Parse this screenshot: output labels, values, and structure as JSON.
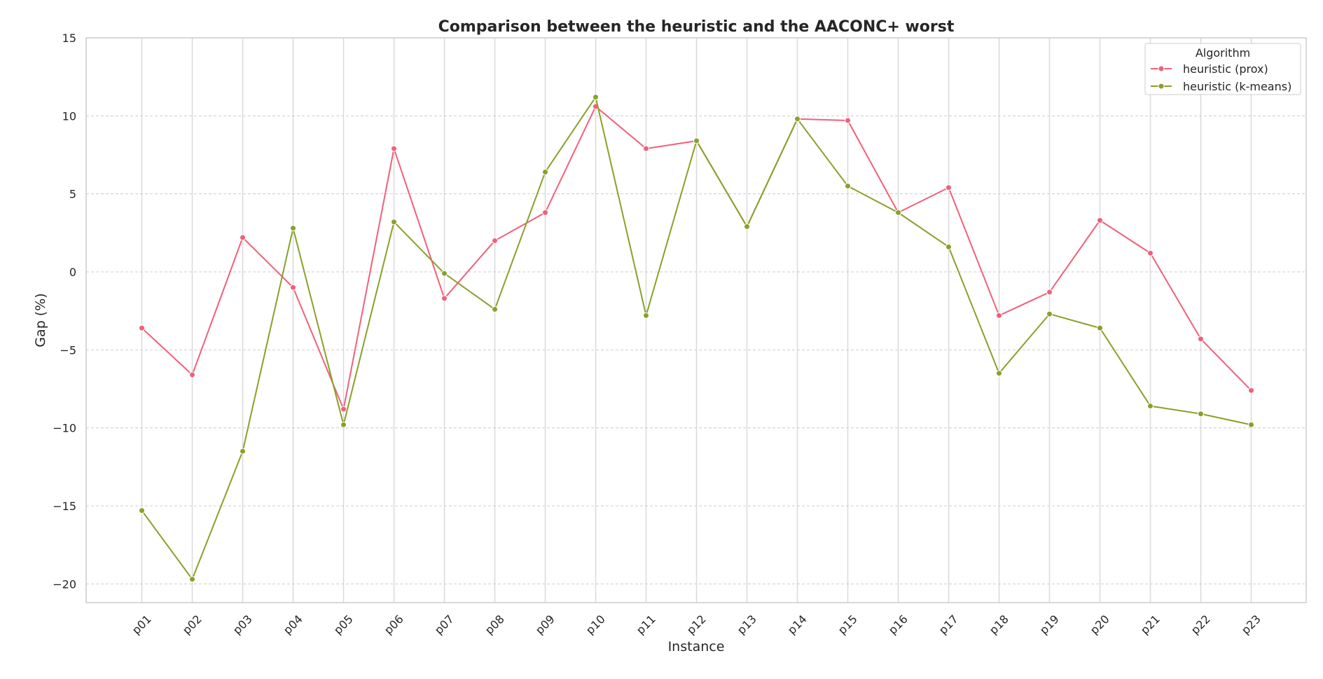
{
  "chart_data": {
    "type": "line",
    "title": "Comparison between the heuristic and the AACONC+ worst",
    "xlabel": "Instance",
    "ylabel": "Gap (%)",
    "categories": [
      "p01",
      "p02",
      "p03",
      "p04",
      "p05",
      "p06",
      "p07",
      "p08",
      "p09",
      "p10",
      "p11",
      "p12",
      "p13",
      "p14",
      "p15",
      "p16",
      "p17",
      "p18",
      "p19",
      "p20",
      "p21",
      "p22",
      "p23"
    ],
    "ylim": [
      -21.2,
      15
    ],
    "yticks": [
      15,
      10,
      5,
      0,
      -5,
      -10,
      -15,
      -20
    ],
    "ytick_labels": [
      "15",
      "10",
      "5",
      "0",
      "−5",
      "−10",
      "−15",
      "−20"
    ],
    "grid": true,
    "legend": {
      "title": "Algorithm",
      "placement": "top-right"
    },
    "series": [
      {
        "name": "heuristic (prox)",
        "color": "#f0607a",
        "values": [
          -3.6,
          -6.6,
          2.2,
          -1.0,
          -8.8,
          7.9,
          -1.7,
          2.0,
          3.8,
          10.6,
          7.9,
          8.4,
          2.9,
          9.8,
          9.7,
          3.8,
          5.4,
          -2.8,
          -1.3,
          3.3,
          1.2,
          -4.3,
          -7.6
        ]
      },
      {
        "name": "heuristic (k-means)",
        "color": "#88a12a",
        "values": [
          -15.3,
          -19.7,
          -11.5,
          2.8,
          -9.8,
          3.2,
          -0.1,
          -2.4,
          6.4,
          11.2,
          -2.8,
          8.4,
          2.9,
          9.8,
          5.5,
          3.8,
          1.6,
          -6.5,
          -2.7,
          -3.6,
          -8.6,
          -9.1,
          -9.8
        ]
      }
    ]
  }
}
